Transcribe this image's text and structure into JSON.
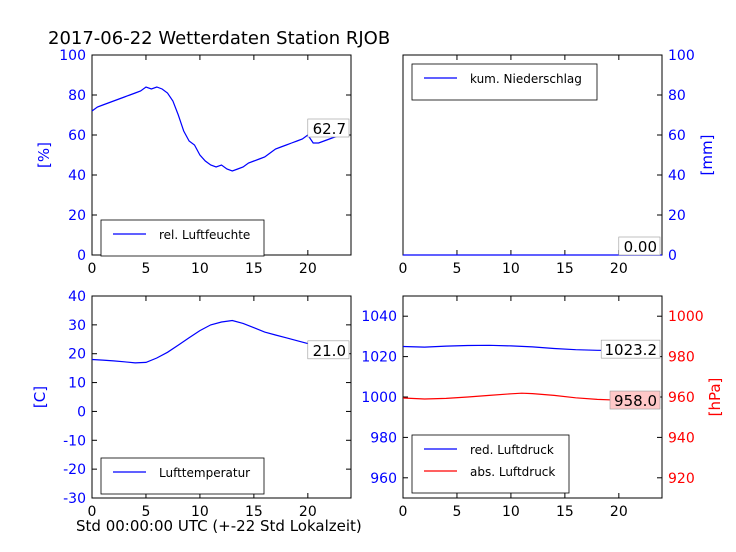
{
  "figure": {
    "title": "2017-06-22 Wetterdaten Station RJOB",
    "xlabel": "Std 00:00:00 UTC (+-22 Std Lokalzeit)"
  },
  "colors": {
    "primary": "#0000ff",
    "secondary": "#ff0000",
    "text": "#000000"
  },
  "chart_data": [
    {
      "type": "line",
      "panel": "humidity",
      "ylabel": "[%]",
      "xlim": [
        0,
        24
      ],
      "ylim": [
        0,
        100
      ],
      "xticks": [
        0,
        5,
        10,
        15,
        20
      ],
      "yticks": [
        0,
        20,
        40,
        60,
        80,
        100
      ],
      "grid": false,
      "legend_position": "lower-left",
      "last_value_label": "62.7",
      "series": [
        {
          "name": "rel. Luftfeuchte",
          "color": "#0000ff",
          "x": [
            0,
            0.5,
            1,
            1.5,
            2,
            2.5,
            3,
            3.5,
            4,
            4.5,
            5,
            5.5,
            6,
            6.5,
            7,
            7.5,
            8,
            8.5,
            9,
            9.5,
            10,
            10.5,
            11,
            11.5,
            12,
            12.5,
            13,
            13.5,
            14,
            14.5,
            15,
            15.5,
            16,
            16.5,
            17,
            17.5,
            18,
            18.5,
            19,
            19.5,
            20,
            20.5,
            21,
            21.5,
            22,
            22.5,
            23,
            23.5
          ],
          "values": [
            72,
            74,
            75,
            76,
            77,
            78,
            79,
            80,
            81,
            82,
            84,
            83,
            84,
            83,
            81,
            77,
            70,
            62,
            57,
            55,
            50,
            47,
            45,
            44,
            45,
            43,
            42,
            43,
            44,
            46,
            47,
            48,
            49,
            51,
            53,
            54,
            55,
            56,
            57,
            58,
            60,
            56,
            56,
            57,
            58,
            59,
            60,
            63
          ]
        }
      ]
    },
    {
      "type": "line",
      "panel": "precipitation",
      "ylabel": "[mm]",
      "xlim": [
        0,
        24
      ],
      "ylim": [
        0,
        100
      ],
      "xticks": [
        0,
        5,
        10,
        15,
        20
      ],
      "yticks": [
        0,
        20,
        40,
        60,
        80,
        100
      ],
      "y_axis_side": "right",
      "grid": false,
      "legend_position": "upper-left",
      "last_value_label": "0.00",
      "series": [
        {
          "name": "kum. Niederschlag",
          "color": "#0000ff",
          "x": [
            0,
            24
          ],
          "values": [
            0,
            0
          ]
        }
      ]
    },
    {
      "type": "line",
      "panel": "temperature",
      "ylabel": "[C]",
      "xlim": [
        0,
        24
      ],
      "ylim": [
        -30,
        40
      ],
      "xticks": [
        0,
        5,
        10,
        15,
        20
      ],
      "yticks": [
        -30,
        -20,
        -10,
        0,
        10,
        20,
        30,
        40
      ],
      "grid": false,
      "legend_position": "lower-left",
      "last_value_label": "21.0",
      "series": [
        {
          "name": "Lufttemperatur",
          "color": "#0000ff",
          "x": [
            0,
            1,
            2,
            3,
            4,
            5,
            6,
            7,
            8,
            9,
            10,
            11,
            12,
            13,
            14,
            15,
            16,
            17,
            18,
            19,
            20,
            21,
            22,
            23,
            23.5
          ],
          "values": [
            18,
            17.8,
            17.5,
            17.2,
            16.8,
            17,
            18.5,
            20.5,
            23,
            25.5,
            28,
            30,
            31,
            31.5,
            30.5,
            29,
            27.5,
            26.5,
            25.5,
            24.5,
            23.5,
            22.5,
            21.8,
            21.3,
            21
          ]
        }
      ]
    },
    {
      "type": "line",
      "panel": "pressure",
      "ylabel_right": "[hPa]",
      "xlim": [
        0,
        24
      ],
      "ylim_left": [
        950,
        1050
      ],
      "ylim_right": [
        910,
        1010
      ],
      "xticks": [
        0,
        5,
        10,
        15,
        20
      ],
      "yticks_left": [
        960,
        980,
        1000,
        1020,
        1040
      ],
      "yticks_right": [
        920,
        940,
        960,
        980,
        1000
      ],
      "grid": false,
      "legend_position": "lower-left",
      "last_value_labels": [
        "1023.2",
        "958.0"
      ],
      "series": [
        {
          "name": "red. Luftdruck",
          "color": "#0000ff",
          "axis": "left",
          "x": [
            0,
            2,
            4,
            6,
            8,
            10,
            12,
            14,
            16,
            18,
            20,
            22,
            23.5
          ],
          "values": [
            1025,
            1024.7,
            1025.2,
            1025.5,
            1025.6,
            1025.3,
            1024.8,
            1024,
            1023.4,
            1023.1,
            1023,
            1023.2,
            1023.2
          ]
        },
        {
          "name": "abs. Luftdruck",
          "color": "#ff0000",
          "axis": "right",
          "x": [
            0,
            2,
            4,
            6,
            8,
            10,
            11,
            12,
            14,
            16,
            18,
            20,
            22,
            23.5
          ],
          "values": [
            959.5,
            959,
            959.3,
            960,
            960.8,
            961.6,
            961.9,
            961.7,
            960.8,
            959.6,
            958.8,
            958.4,
            958.1,
            958
          ]
        }
      ]
    }
  ]
}
